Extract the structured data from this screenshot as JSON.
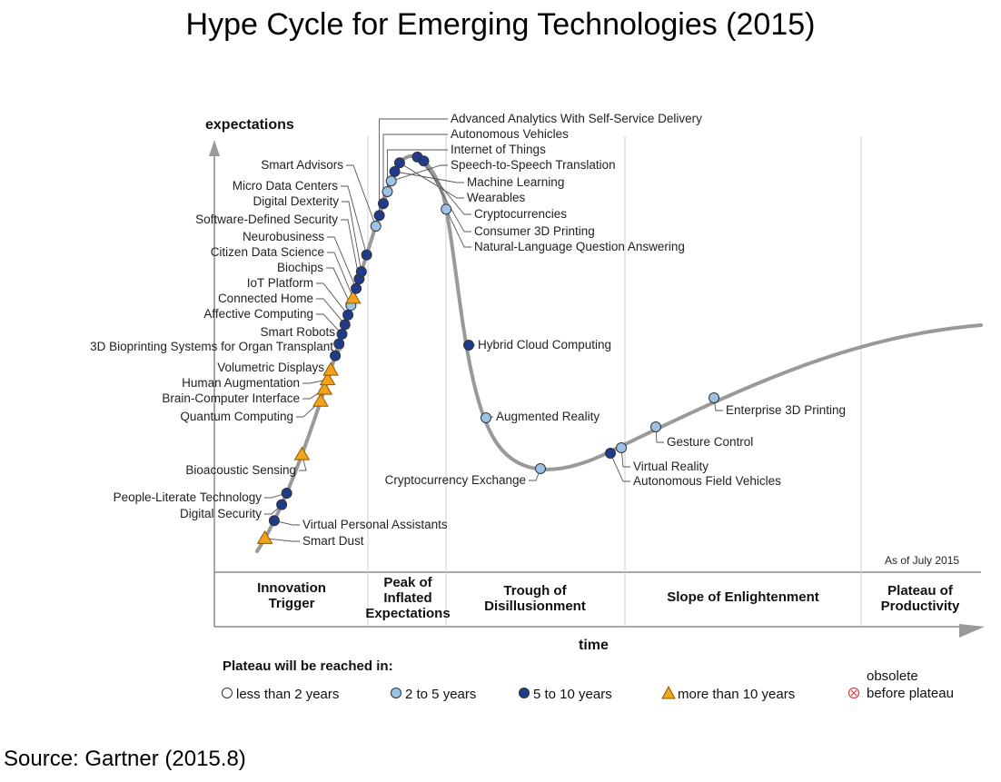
{
  "title": "Hype Cycle for Emerging Technologies (2015)",
  "source": "Source: Gartner (2015.8)",
  "chart_data": {
    "type": "scatter",
    "title": "Hype Cycle for Emerging Technologies (2015)",
    "ylabel": "expectations",
    "xlabel": "time",
    "as_of": "As of July 2015",
    "phases": [
      {
        "lines": [
          "Innovation",
          "Trigger"
        ]
      },
      {
        "lines": [
          "Peak of",
          "Inflated",
          "Expectations"
        ]
      },
      {
        "lines": [
          "Trough of",
          "Disillusionment"
        ]
      },
      {
        "lines": [
          "Slope of Enlightenment"
        ]
      },
      {
        "lines": [
          "Plateau of",
          "Productivity"
        ]
      }
    ],
    "legend_title": "Plateau will be reached in:",
    "legend": [
      {
        "key": "lt2",
        "label": "less than 2 years"
      },
      {
        "key": "2to5",
        "label": "2 to 5 years"
      },
      {
        "key": "5to10",
        "label": "5 to 10 years"
      },
      {
        "key": "gt10",
        "label": "more than 10 years"
      },
      {
        "key": "obsolete",
        "label_lines": [
          "obsolete",
          "before plateau"
        ]
      }
    ],
    "colors": {
      "curve": "#999999",
      "lt2": "#ffffff",
      "2to5": "#9cc3e6",
      "5to10": "#1f3b8c",
      "gt10": "#f2a31b",
      "obsolete": "#e04040",
      "marker_edge": "#333333"
    },
    "technologies": [
      {
        "name": "Smart Dust",
        "category": "gt10",
        "t": 0.012
      },
      {
        "name": "Virtual Personal Assistants",
        "category": "5to10",
        "t": 0.028
      },
      {
        "name": "Digital Security",
        "category": "5to10",
        "t": 0.042
      },
      {
        "name": "People-Literate Technology",
        "category": "5to10",
        "t": 0.052
      },
      {
        "name": "Bioacoustic Sensing",
        "category": "gt10",
        "t": 0.085
      },
      {
        "name": "Quantum Computing",
        "category": "gt10",
        "t": 0.13
      },
      {
        "name": "Brain-Computer Interface",
        "category": "gt10",
        "t": 0.14
      },
      {
        "name": "Human Augmentation",
        "category": "gt10",
        "t": 0.148
      },
      {
        "name": "Volumetric Displays",
        "category": "gt10",
        "t": 0.156
      },
      {
        "name": "3D Bioprinting Systems for Organ Transplant",
        "category": "5to10",
        "t": 0.168
      },
      {
        "name": "Smart Robots",
        "category": "5to10",
        "t": 0.178
      },
      {
        "name": "Affective Computing",
        "category": "5to10",
        "t": 0.186
      },
      {
        "name": "Connected Home",
        "category": "5to10",
        "t": 0.194
      },
      {
        "name": "IoT Platform",
        "category": "5to10",
        "t": 0.202
      },
      {
        "name": "Biochips",
        "category": "2to5",
        "t": 0.21
      },
      {
        "name": "Citizen Data Science",
        "category": "gt10",
        "t": 0.216
      },
      {
        "name": "Neurobusiness",
        "category": "5to10",
        "t": 0.224
      },
      {
        "name": "Software-Defined Security",
        "category": "5to10",
        "t": 0.232
      },
      {
        "name": "Digital Dexterity",
        "category": "5to10",
        "t": 0.238
      },
      {
        "name": "Micro Data Centers",
        "category": "5to10",
        "t": 0.252
      },
      {
        "name": "Smart Advisors",
        "category": "2to5",
        "t": 0.276
      },
      {
        "name": "Advanced Analytics With Self-Service Delivery",
        "category": "5to10",
        "t": 0.285
      },
      {
        "name": "Autonomous Vehicles",
        "category": "5to10",
        "t": 0.295
      },
      {
        "name": "Internet of Things",
        "category": "2to5",
        "t": 0.305
      },
      {
        "name": "Speech-to-Speech Translation",
        "category": "2to5",
        "t": 0.314
      },
      {
        "name": "Machine Learning",
        "category": "5to10",
        "t": 0.322
      },
      {
        "name": "Wearables",
        "category": "5to10",
        "t": 0.33
      },
      {
        "name": "Cryptocurrencies",
        "category": "5to10",
        "t": 0.346
      },
      {
        "name": "Consumer 3D Printing",
        "category": "5to10",
        "t": 0.352
      },
      {
        "name": "Natural-Language Question Answering",
        "category": "2to5",
        "t": 0.395
      },
      {
        "name": "Hybrid Cloud Computing",
        "category": "5to10",
        "t": 0.43
      },
      {
        "name": "Augmented Reality",
        "category": "2to5",
        "t": 0.52
      },
      {
        "name": "Cryptocurrency Exchange",
        "category": "2to5",
        "t": 0.6
      },
      {
        "name": "Autonomous Field Vehicles",
        "category": "5to10",
        "t": 0.613
      },
      {
        "name": "Virtual Reality",
        "category": "2to5",
        "t": 0.654
      },
      {
        "name": "Gesture Control",
        "category": "2to5",
        "t": 0.704
      },
      {
        "name": "Enterprise 3D Printing",
        "category": "2to5",
        "t": 0.704
      }
    ]
  }
}
